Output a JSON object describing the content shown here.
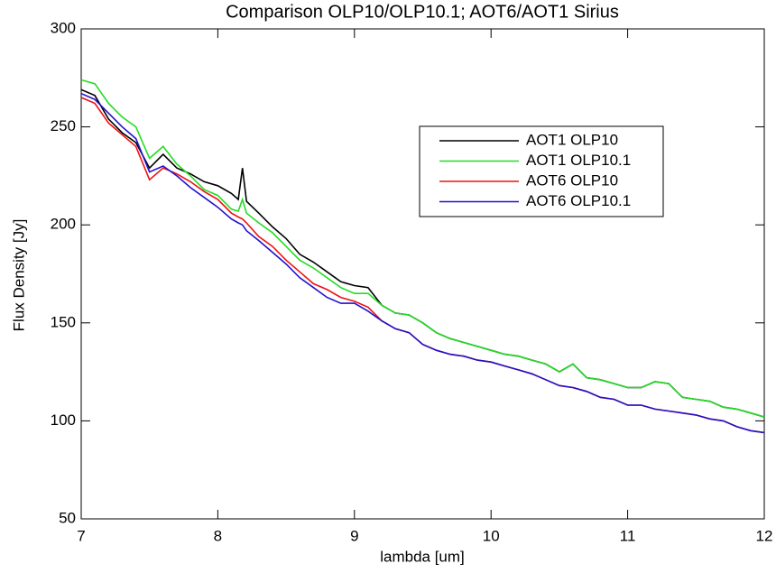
{
  "chart_data": {
    "type": "line",
    "title": "Comparison OLP10/OLP10.1; AOT6/AOT1 Sirius",
    "x_label": "lambda [um]",
    "y_label": "Flux Density [Jy]",
    "x": [
      7.0,
      7.1,
      7.2,
      7.3,
      7.4,
      7.5,
      7.6,
      7.7,
      7.8,
      7.9,
      8.0,
      8.1,
      8.15,
      8.18,
      8.21,
      8.3,
      8.4,
      8.5,
      8.6,
      8.7,
      8.8,
      8.9,
      9.0,
      9.1,
      9.2,
      9.3,
      9.4,
      9.5,
      9.6,
      9.7,
      9.8,
      9.9,
      10.0,
      10.1,
      10.2,
      10.3,
      10.4,
      10.5,
      10.6,
      10.7,
      10.8,
      10.9,
      11.0,
      11.1,
      11.2,
      11.3,
      11.4,
      11.5,
      11.6,
      11.7,
      11.8,
      11.9,
      12.0
    ],
    "series": [
      {
        "name": "AOT1 OLP10",
        "color": "#000000",
        "values": [
          269,
          266,
          254,
          247,
          242,
          229,
          236,
          229,
          226,
          222,
          220,
          216,
          213,
          229,
          212,
          206,
          199,
          193,
          185,
          181,
          176,
          171,
          169,
          168,
          159,
          155,
          154,
          150,
          145,
          142,
          140,
          138,
          136,
          134,
          133,
          131,
          129,
          125,
          129,
          122,
          121,
          119,
          117,
          117,
          120,
          119,
          112,
          111,
          110,
          107,
          106,
          104,
          102
        ]
      },
      {
        "name": "AOT1 OLP10.1",
        "color": "#22dd22",
        "values": [
          274,
          272,
          262,
          255,
          250,
          234,
          240,
          231,
          225,
          218,
          215,
          208,
          207,
          213,
          206,
          201,
          196,
          189,
          182,
          178,
          173,
          168,
          165,
          165,
          159,
          155,
          154,
          150,
          145,
          142,
          140,
          138,
          136,
          134,
          133,
          131,
          129,
          125,
          129,
          122,
          121,
          119,
          117,
          117,
          120,
          119,
          112,
          111,
          110,
          107,
          106,
          104,
          102
        ]
      },
      {
        "name": "AOT6 OLP10",
        "color": "#ee1111",
        "values": [
          265,
          262,
          252,
          246,
          240,
          223,
          229,
          226,
          222,
          217,
          213,
          206,
          204,
          203,
          201,
          194,
          189,
          182,
          176,
          170,
          167,
          163,
          161,
          158,
          151,
          147,
          145,
          139,
          136,
          134,
          133,
          131,
          130,
          128,
          126,
          124,
          121,
          118,
          117,
          115,
          112,
          111,
          108,
          108,
          106,
          105,
          104,
          103,
          101,
          100,
          97,
          95,
          94
        ]
      },
      {
        "name": "AOT6 OLP10.1",
        "color": "#2211cc",
        "values": [
          267,
          264,
          257,
          250,
          244,
          227,
          230,
          225,
          219,
          214,
          209,
          203,
          201,
          200,
          197,
          192,
          186,
          180,
          173,
          168,
          163,
          160,
          160,
          156,
          151,
          147,
          145,
          139,
          136,
          134,
          133,
          131,
          130,
          128,
          126,
          124,
          121,
          118,
          117,
          115,
          112,
          111,
          108,
          108,
          106,
          105,
          104,
          103,
          101,
          100,
          97,
          95,
          94
        ]
      }
    ],
    "xlim": [
      7,
      12
    ],
    "xticks": [
      7,
      8,
      9,
      10,
      11,
      12
    ],
    "ylim": [
      50,
      300
    ],
    "yticks": [
      50,
      100,
      150,
      200,
      250,
      300
    ],
    "legend": "upper right"
  }
}
